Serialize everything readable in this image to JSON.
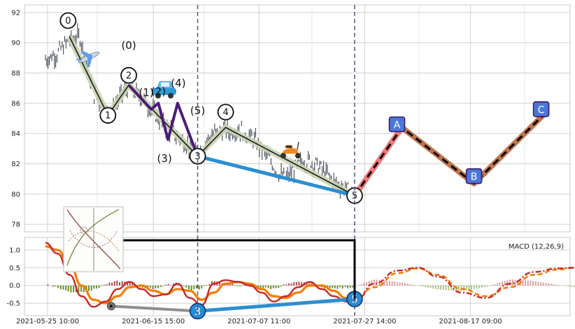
{
  "chart_data": [
    {
      "type": "candlestick",
      "title": "",
      "xlabel": "",
      "ylabel": "",
      "ylim": [
        77.5,
        92.5
      ],
      "grid": true,
      "x_ticks": [
        "2021-05-25 10:00",
        "2021-06-15 15:00",
        "2021-07-07 11:00",
        "2021-07-27 14:00",
        "2021-08-17 09:00"
      ],
      "y_ticks": [
        78,
        80,
        82,
        84,
        86,
        88,
        90,
        92
      ],
      "price_path": [
        {
          "t": 0,
          "v": 88.9
        },
        {
          "t": 1.5,
          "v": 89.3
        },
        {
          "t": 3,
          "v": 90.2
        },
        {
          "t": 4.3,
          "v": 90.4
        },
        {
          "t": 5.2,
          "v": 88.6
        },
        {
          "t": 6,
          "v": 86.7
        },
        {
          "t": 7,
          "v": 85.9
        },
        {
          "t": 7.8,
          "v": 85.2
        },
        {
          "t": 8.6,
          "v": 85.8
        },
        {
          "t": 9.6,
          "v": 86.6
        },
        {
          "t": 10.4,
          "v": 87.1
        },
        {
          "t": 11.3,
          "v": 86.7
        },
        {
          "t": 12.3,
          "v": 86.2
        },
        {
          "t": 13.2,
          "v": 85.6
        },
        {
          "t": 14.2,
          "v": 84.9
        },
        {
          "t": 15.2,
          "v": 84.4
        },
        {
          "t": 16.2,
          "v": 83.9
        },
        {
          "t": 17.2,
          "v": 83.5
        },
        {
          "t": 18.2,
          "v": 82.9
        },
        {
          "t": 19,
          "v": 82.6
        },
        {
          "t": 20,
          "v": 83.4
        },
        {
          "t": 21,
          "v": 84.0
        },
        {
          "t": 22,
          "v": 84.2
        },
        {
          "t": 23,
          "v": 84.1
        },
        {
          "t": 24,
          "v": 84.3
        },
        {
          "t": 25,
          "v": 84.0
        },
        {
          "t": 26,
          "v": 83.6
        },
        {
          "t": 27,
          "v": 83.0
        },
        {
          "t": 28,
          "v": 82.3
        },
        {
          "t": 29,
          "v": 81.4
        },
        {
          "t": 30,
          "v": 81.0
        },
        {
          "t": 31,
          "v": 81.6
        },
        {
          "t": 32,
          "v": 82.1
        },
        {
          "t": 33,
          "v": 82.2
        },
        {
          "t": 34,
          "v": 81.9
        },
        {
          "t": 35,
          "v": 81.4
        },
        {
          "t": 36,
          "v": 80.8
        },
        {
          "t": 37,
          "v": 80.5
        },
        {
          "t": 38,
          "v": 80.2
        }
      ],
      "wave_points": [
        {
          "label": "0",
          "t": 3.0,
          "v": 90.4
        },
        {
          "label": "1",
          "t": 7.8,
          "v": 85.2
        },
        {
          "label": "2",
          "t": 10.4,
          "v": 87.2
        },
        {
          "label": "3",
          "t": 19.0,
          "v": 82.5
        },
        {
          "label": "4",
          "t": 22.5,
          "v": 84.4
        },
        {
          "label": "5",
          "t": 38.6,
          "v": 79.9
        }
      ],
      "subwave_points": [
        {
          "label": "(0)",
          "t": 10.4,
          "v": 87.2
        },
        {
          "label": "(1)",
          "t": 13.2,
          "v": 85.6
        },
        {
          "label": "(2)",
          "t": 14.1,
          "v": 86.0
        },
        {
          "label": "(3)",
          "t": 15.3,
          "v": 83.6
        },
        {
          "label": "(4)",
          "t": 16.5,
          "v": 86.0
        },
        {
          "label": "(5)",
          "t": 19.0,
          "v": 82.5
        }
      ],
      "projection_points": [
        {
          "label": "A",
          "t": 44.5,
          "v": 84.4
        },
        {
          "label": "B",
          "t": 53.5,
          "v": 80.7
        },
        {
          "label": "C",
          "t": 62.5,
          "v": 85.4
        }
      ]
    },
    {
      "type": "macd",
      "label": "MACD (12,26,9)",
      "ylim": [
        -0.85,
        1.35
      ],
      "y_ticks": [
        "1.0",
        "0.5",
        "0.0",
        "-0.5"
      ],
      "divergence_points": [
        {
          "label": "3",
          "t": 19.0,
          "v": -0.72
        },
        {
          "label": "5",
          "t": 38.6,
          "v": -0.38
        }
      ],
      "macd_line": [
        {
          "t": 0,
          "v": 1.2
        },
        {
          "t": 1.5,
          "v": 0.9
        },
        {
          "t": 3,
          "v": 0.3
        },
        {
          "t": 4.5,
          "v": -0.3
        },
        {
          "t": 6,
          "v": -0.6
        },
        {
          "t": 7.5,
          "v": -0.45
        },
        {
          "t": 9,
          "v": -0.1
        },
        {
          "t": 10.5,
          "v": 0.1
        },
        {
          "t": 12,
          "v": -0.1
        },
        {
          "t": 13.5,
          "v": -0.3
        },
        {
          "t": 15,
          "v": -0.25
        },
        {
          "t": 16.5,
          "v": 0.05
        },
        {
          "t": 18,
          "v": -0.35
        },
        {
          "t": 19.5,
          "v": -0.55
        },
        {
          "t": 21,
          "v": 0.05
        },
        {
          "t": 22.5,
          "v": 0.15
        },
        {
          "t": 24,
          "v": 0.1
        },
        {
          "t": 25.5,
          "v": 0.0
        },
        {
          "t": 27,
          "v": -0.2
        },
        {
          "t": 28.5,
          "v": -0.45
        },
        {
          "t": 30,
          "v": -0.3
        },
        {
          "t": 31.5,
          "v": -0.05
        },
        {
          "t": 33,
          "v": 0.1
        },
        {
          "t": 34.5,
          "v": -0.1
        },
        {
          "t": 36,
          "v": -0.3
        },
        {
          "t": 37.5,
          "v": -0.45
        },
        {
          "t": 38.6,
          "v": -0.48
        }
      ],
      "signal_line": [
        {
          "t": 0,
          "v": 1.1
        },
        {
          "t": 1.5,
          "v": 1.0
        },
        {
          "t": 3,
          "v": 0.6
        },
        {
          "t": 4.5,
          "v": 0.0
        },
        {
          "t": 6,
          "v": -0.4
        },
        {
          "t": 7.5,
          "v": -0.5
        },
        {
          "t": 9,
          "v": -0.3
        },
        {
          "t": 10.5,
          "v": -0.05
        },
        {
          "t": 12,
          "v": 0.0
        },
        {
          "t": 13.5,
          "v": -0.15
        },
        {
          "t": 15,
          "v": -0.25
        },
        {
          "t": 16.5,
          "v": -0.1
        },
        {
          "t": 18,
          "v": -0.15
        },
        {
          "t": 19.5,
          "v": -0.4
        },
        {
          "t": 21,
          "v": -0.2
        },
        {
          "t": 22.5,
          "v": 0.05
        },
        {
          "t": 24,
          "v": 0.1
        },
        {
          "t": 25.5,
          "v": 0.05
        },
        {
          "t": 27,
          "v": -0.1
        },
        {
          "t": 28.5,
          "v": -0.3
        },
        {
          "t": 30,
          "v": -0.35
        },
        {
          "t": 31.5,
          "v": -0.2
        },
        {
          "t": 33,
          "v": 0.0
        },
        {
          "t": 34.5,
          "v": 0.0
        },
        {
          "t": 36,
          "v": -0.15
        },
        {
          "t": 37.5,
          "v": -0.35
        },
        {
          "t": 38.6,
          "v": -0.42
        }
      ],
      "projected_macd": [
        {
          "t": 38.6,
          "v": -0.48
        },
        {
          "t": 41,
          "v": 0.05
        },
        {
          "t": 44,
          "v": 0.42
        },
        {
          "t": 46.5,
          "v": 0.5
        },
        {
          "t": 49,
          "v": 0.25
        },
        {
          "t": 52,
          "v": -0.2
        },
        {
          "t": 55,
          "v": -0.35
        },
        {
          "t": 58,
          "v": 0.05
        },
        {
          "t": 61,
          "v": 0.38
        },
        {
          "t": 64,
          "v": 0.48
        },
        {
          "t": 66,
          "v": 0.5
        }
      ],
      "projected_signal": [
        {
          "t": 38.6,
          "v": -0.42
        },
        {
          "t": 41,
          "v": -0.05
        },
        {
          "t": 44,
          "v": 0.35
        },
        {
          "t": 46.5,
          "v": 0.48
        },
        {
          "t": 49,
          "v": 0.3
        },
        {
          "t": 52,
          "v": -0.1
        },
        {
          "t": 55,
          "v": -0.3
        },
        {
          "t": 58,
          "v": -0.05
        },
        {
          "t": 61,
          "v": 0.3
        },
        {
          "t": 64,
          "v": 0.45
        },
        {
          "t": 66,
          "v": 0.5
        }
      ],
      "sar_markers": [
        {
          "t": 8.2,
          "v": -0.58
        }
      ]
    }
  ],
  "colors": {
    "wave_line": "#1a1a1a",
    "wave_band": "#c8d4b3",
    "subwave": "#4b1c7a",
    "divergence": "#2b8fd0",
    "projection_ab": "#f07878",
    "projection_bc": "#c0764a",
    "projection_dash": "#000000",
    "marker_fill": "#4a78d8",
    "macd": "#c62828",
    "signal": "#f57c00",
    "hist_pos": "#b24b4b",
    "hist_neg": "#6b8e23",
    "candle": "#3d4452",
    "grid": "#d0d0d0"
  },
  "icons": [
    "airplane-icon",
    "car-icon",
    "scooter-icon",
    "thumbnail-image"
  ]
}
